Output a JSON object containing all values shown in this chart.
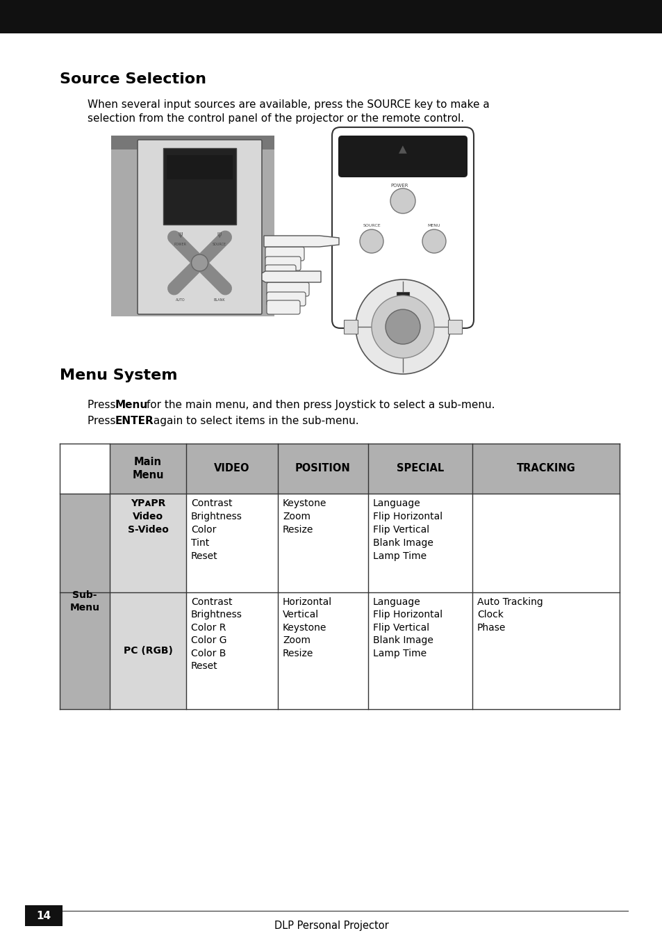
{
  "page_bg": "#ffffff",
  "header_bar_color": "#111111",
  "section1_title": "Source Selection",
  "section1_body_line1": "When several input sources are available, press the SOURCE key to make a",
  "section1_body_line2": "selection from the control panel of the projector or the remote control.",
  "section2_title": "Menu System",
  "section2_body_p1_normal1": "Press ",
  "section2_body_p1_bold": "Menu",
  "section2_body_p1_normal2": " for the main menu, and then press Joystick to select a sub-menu.",
  "section2_body_p2_normal1": "Press ",
  "section2_body_p2_bold": "ENTER",
  "section2_body_p2_normal2": " again to select items in the sub-menu.",
  "footer_text": "DLP Personal Projector",
  "footer_page": "14",
  "header_fill": "#b0b0b0",
  "submenu_fill": "#b0b0b0",
  "col2_fill": "#d8d8d8",
  "white_fill": "#ffffff",
  "table_row1_main": "YPᴀPR\nVideo\nS-Video",
  "table_row1_video": "Contrast\nBrightness\nColor\nTint\nReset",
  "table_row1_position": "Keystone\nZoom\nResize",
  "table_row1_special": "Language\nFlip Horizontal\nFlip Vertical\nBlank Image\nLamp Time",
  "table_row1_tracking": "",
  "table_row2_main": "PC (RGB)",
  "table_row2_video": "Contrast\nBrightness\nColor R\nColor G\nColor B\nReset",
  "table_row2_position": "Horizontal\nVertical\nKeystone\nZoom\nResize",
  "table_row2_special": "Language\nFlip Horizontal\nFlip Vertical\nBlank Image\nLamp Time",
  "table_row2_tracking": "Auto Tracking\nClock\nPhase",
  "submenu_label": "Sub-\nMenu"
}
